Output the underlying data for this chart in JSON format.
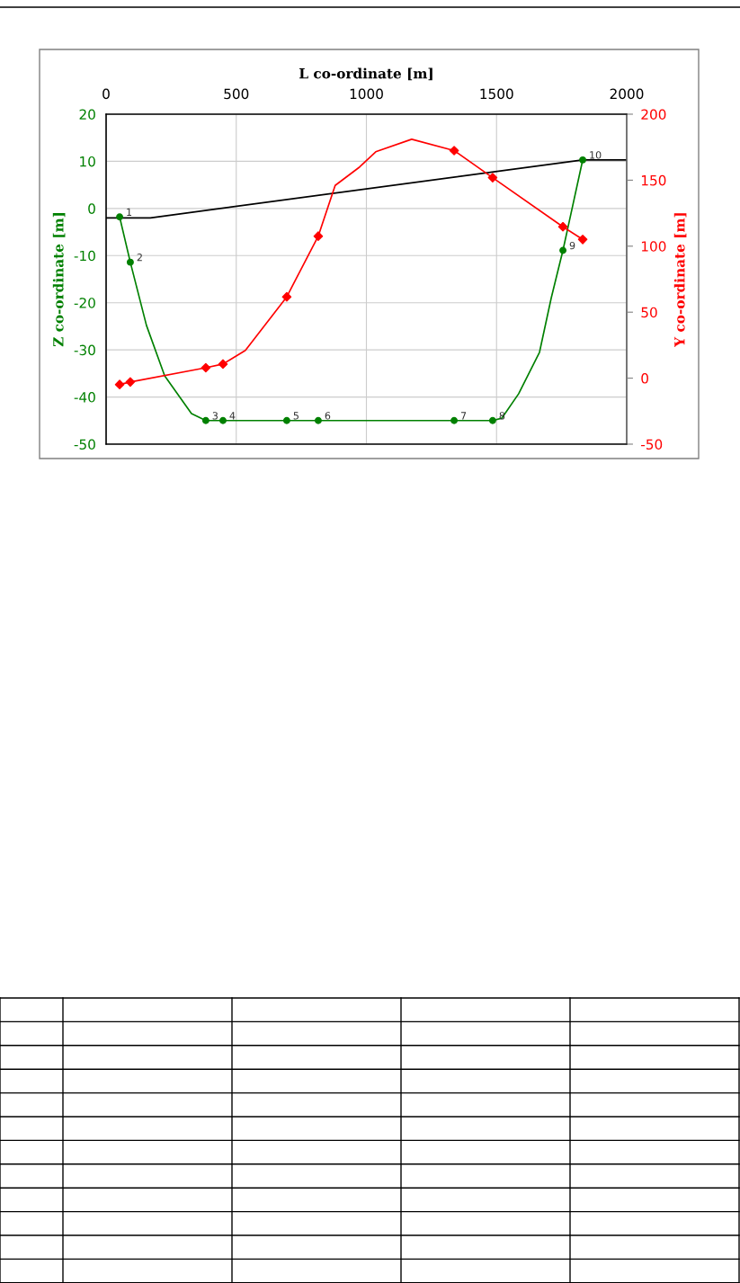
{
  "chart_data": {
    "type": "line",
    "xlabel": "L co-ordinate [m]",
    "ylabel": "Z co-ordinate [m]",
    "y2label": "Y co-ordinate [m]",
    "xlim": [
      0,
      2000
    ],
    "xticks": [
      0,
      500,
      1000,
      1500,
      2000
    ],
    "ylim": [
      -50,
      20
    ],
    "yticks": [
      -50,
      -40,
      -30,
      -20,
      -10,
      0,
      10,
      20
    ],
    "y2lim": [
      -50,
      200
    ],
    "y2ticks": [
      -50,
      0,
      50,
      100,
      150,
      200
    ],
    "grid": true,
    "series": [
      {
        "color": "#000000",
        "marker": "none",
        "x": [
          0,
          170,
          1831,
          2000
        ],
        "values": [
          -2,
          -2,
          10.3,
          10.3
        ]
      },
      {
        "color": "#008000",
        "marker": "none",
        "x": [
          52,
          93,
          155,
          225,
          328,
          383,
          449,
          694,
          815,
          1337,
          1485,
          1520,
          1585,
          1665,
          1710,
          1755,
          1831
        ],
        "values": [
          -1.8,
          -11.4,
          -24.8,
          -35.5,
          -43.5,
          -45,
          -45,
          -45,
          -45,
          -45,
          -45,
          -44.5,
          -39.3,
          -30.5,
          -19,
          -8.9,
          10.3
        ]
      },
      {
        "type": "scatter",
        "color": "#008000",
        "marker": "circle",
        "x": [
          52,
          93,
          383,
          449,
          694,
          815,
          1337,
          1485,
          1755,
          1831
        ],
        "values": [
          -1.8,
          -11.4,
          -45,
          -45,
          -45,
          -45,
          -45,
          -45,
          -8.9,
          10.3
        ]
      },
      {
        "color": "#ff0000",
        "marker": "none",
        "axis": "y2",
        "x": [
          52,
          93,
          383,
          449,
          535,
          694,
          815,
          880,
          974,
          1036,
          1174,
          1337,
          1485,
          1755,
          1831
        ],
        "values": [
          -4.8,
          -2.9,
          7.9,
          10.7,
          21,
          61.6,
          107.6,
          146,
          160,
          171.5,
          181,
          172.4,
          151.9,
          114.7,
          105.1
        ]
      },
      {
        "type": "scatter",
        "color": "#ff0000",
        "marker": "diamond",
        "axis": "y2",
        "x": [
          52,
          93,
          383,
          449,
          694,
          815,
          1337,
          1485,
          1755,
          1831
        ],
        "values": [
          -4.8,
          -2.9,
          7.9,
          10.7,
          61.6,
          107.6,
          172.4,
          151.9,
          114.7,
          105.1
        ]
      }
    ],
    "annotations": [
      {
        "text": "1",
        "x": 52,
        "y": -1.8
      },
      {
        "text": "2",
        "x": 93,
        "y": -11.4
      },
      {
        "text": "3",
        "x": 383,
        "y": -45
      },
      {
        "text": "4",
        "x": 449,
        "y": -45
      },
      {
        "text": "5",
        "x": 694,
        "y": -45
      },
      {
        "text": "6",
        "x": 815,
        "y": -45
      },
      {
        "text": "7",
        "x": 1337,
        "y": -45
      },
      {
        "text": "8",
        "x": 1485,
        "y": -45
      },
      {
        "text": "9",
        "x": 1755,
        "y": -8.9
      },
      {
        "text": "10",
        "x": 1831,
        "y": 10.3
      }
    ]
  }
}
